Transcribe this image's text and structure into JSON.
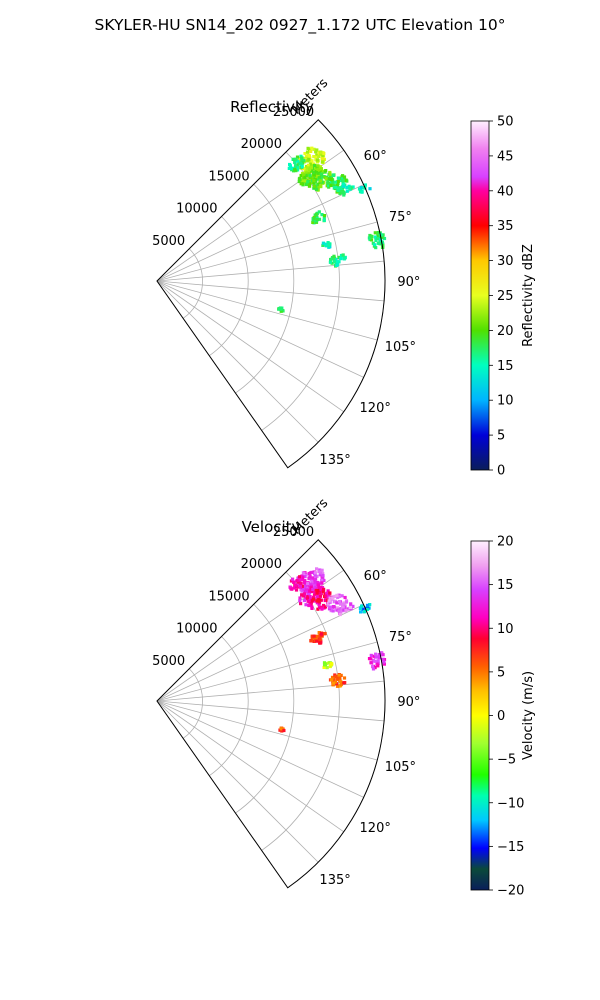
{
  "figure": {
    "title": "SKYLER-HU  SN14_202  0927_1.172 UTC Elevation 10°"
  },
  "chart_data": [
    {
      "type": "heatmap",
      "subtype": "polar-sector-radar",
      "title": "Reflectivity",
      "radial_label": "Meters",
      "r_ticks": [
        "5000",
        "10000",
        "15000",
        "20000",
        "25000"
      ],
      "r_tick_values": [
        5000,
        10000,
        15000,
        20000,
        25000
      ],
      "rlim": [
        0,
        25000
      ],
      "theta_ticks": [
        "60°",
        "75°",
        "90°",
        "105°",
        "120°",
        "135°"
      ],
      "theta_tick_values": [
        60,
        75,
        90,
        105,
        120,
        135
      ],
      "thetalim": [
        45,
        145
      ],
      "grid": true,
      "colorbar": {
        "label": "Reflectivity dBZ",
        "ticks": [
          "0",
          "5",
          "10",
          "15",
          "20",
          "25",
          "30",
          "35",
          "40",
          "45",
          "50"
        ],
        "tick_values": [
          0,
          5,
          10,
          15,
          20,
          25,
          30,
          35,
          40,
          45,
          50
        ],
        "range": [
          0,
          50
        ],
        "stops": [
          [
            0,
            "#0a1e5a"
          ],
          [
            0.1,
            "#0000d8"
          ],
          [
            0.2,
            "#00b4ff"
          ],
          [
            0.3,
            "#00ffc0"
          ],
          [
            0.4,
            "#50e000"
          ],
          [
            0.5,
            "#e8ff20"
          ],
          [
            0.6,
            "#ffc800"
          ],
          [
            0.7,
            "#ff0000"
          ],
          [
            0.8,
            "#ff00a0"
          ],
          [
            0.84,
            "#d840ff"
          ],
          [
            0.92,
            "#f080f0"
          ],
          [
            1.0,
            "#fff0ff"
          ]
        ]
      },
      "echoes": [
        {
          "azimuth": 52,
          "range_m": 21500,
          "d_az": 3.5,
          "d_r": 1600,
          "value": 24
        },
        {
          "azimuth": 55.5,
          "range_m": 20500,
          "d_az": 2.5,
          "d_r": 1500,
          "value": 21
        },
        {
          "azimuth": 58,
          "range_m": 21000,
          "d_az": 3,
          "d_r": 1400,
          "value": 20
        },
        {
          "azimuth": 50,
          "range_m": 20000,
          "d_az": 2,
          "d_r": 1000,
          "value": 17
        },
        {
          "azimuth": 61.5,
          "range_m": 22500,
          "d_az": 2.5,
          "d_r": 1100,
          "value": 18
        },
        {
          "azimuth": 64,
          "range_m": 23000,
          "d_az": 1.5,
          "d_r": 900,
          "value": 16
        },
        {
          "azimuth": 68.5,
          "range_m": 19000,
          "d_az": 2,
          "d_r": 900,
          "value": 18
        },
        {
          "azimuth": 79.5,
          "range_m": 24500,
          "d_az": 2.5,
          "d_r": 900,
          "value": 17
        },
        {
          "azimuth": 83.5,
          "range_m": 20000,
          "d_az": 2,
          "d_r": 900,
          "value": 16
        },
        {
          "azimuth": 78,
          "range_m": 19000,
          "d_az": 1,
          "d_r": 600,
          "value": 15
        },
        {
          "azimuth": 66,
          "range_m": 25000,
          "d_az": 1,
          "d_r": 700,
          "value": 14
        },
        {
          "azimuth": 103,
          "range_m": 14000,
          "d_az": 0.8,
          "d_r": 300,
          "value": 17
        }
      ]
    },
    {
      "type": "heatmap",
      "subtype": "polar-sector-radar",
      "title": "Velocity",
      "radial_label": "Meters",
      "r_ticks": [
        "5000",
        "10000",
        "15000",
        "20000",
        "25000"
      ],
      "r_tick_values": [
        5000,
        10000,
        15000,
        20000,
        25000
      ],
      "rlim": [
        0,
        25000
      ],
      "theta_ticks": [
        "60°",
        "75°",
        "90°",
        "105°",
        "120°",
        "135°"
      ],
      "theta_tick_values": [
        60,
        75,
        90,
        105,
        120,
        135
      ],
      "thetalim": [
        45,
        145
      ],
      "grid": true,
      "colorbar": {
        "label": "Velocity (m/s)",
        "ticks": [
          "−20",
          "−15",
          "−10",
          "−5",
          "0",
          "5",
          "10",
          "15",
          "20"
        ],
        "tick_values": [
          -20,
          -15,
          -10,
          -5,
          0,
          5,
          10,
          15,
          20
        ],
        "range": [
          -20,
          20
        ],
        "stops": [
          [
            0,
            "#0a1e5a"
          ],
          [
            0.06,
            "#0a4a3a"
          ],
          [
            0.12,
            "#0000ff"
          ],
          [
            0.2,
            "#00c8ff"
          ],
          [
            0.27,
            "#00ffb0"
          ],
          [
            0.33,
            "#20ff00"
          ],
          [
            0.42,
            "#a0ff30"
          ],
          [
            0.5,
            "#ffff00"
          ],
          [
            0.57,
            "#ffc000"
          ],
          [
            0.64,
            "#ff6000"
          ],
          [
            0.72,
            "#ff0030"
          ],
          [
            0.78,
            "#ff00c0"
          ],
          [
            0.86,
            "#d840ff"
          ],
          [
            0.93,
            "#f0a0f0"
          ],
          [
            1.0,
            "#fff0ff"
          ]
        ]
      },
      "echoes": [
        {
          "azimuth": 52,
          "range_m": 21500,
          "d_az": 3.5,
          "d_r": 1600,
          "value": 14
        },
        {
          "azimuth": 55.5,
          "range_m": 20500,
          "d_az": 2.5,
          "d_r": 1500,
          "value": 12
        },
        {
          "azimuth": 58,
          "range_m": 21000,
          "d_az": 3,
          "d_r": 1400,
          "value": 10
        },
        {
          "azimuth": 50,
          "range_m": 20000,
          "d_az": 2,
          "d_r": 1000,
          "value": 11
        },
        {
          "azimuth": 61.5,
          "range_m": 22500,
          "d_az": 2.5,
          "d_r": 1100,
          "value": 15
        },
        {
          "azimuth": 64,
          "range_m": 23000,
          "d_az": 1.5,
          "d_r": 900,
          "value": 16
        },
        {
          "azimuth": 68.5,
          "range_m": 19000,
          "d_az": 2,
          "d_r": 900,
          "value": 7
        },
        {
          "azimuth": 79.5,
          "range_m": 24500,
          "d_az": 2.5,
          "d_r": 900,
          "value": 13
        },
        {
          "azimuth": 83.5,
          "range_m": 20000,
          "d_az": 2,
          "d_r": 900,
          "value": 6
        },
        {
          "azimuth": 78,
          "range_m": 19000,
          "d_az": 1,
          "d_r": 600,
          "value": -2
        },
        {
          "azimuth": 66,
          "range_m": 25000,
          "d_az": 1,
          "d_r": 700,
          "value": -12
        },
        {
          "azimuth": 103,
          "range_m": 14000,
          "d_az": 0.8,
          "d_r": 300,
          "value": 6
        }
      ]
    }
  ]
}
